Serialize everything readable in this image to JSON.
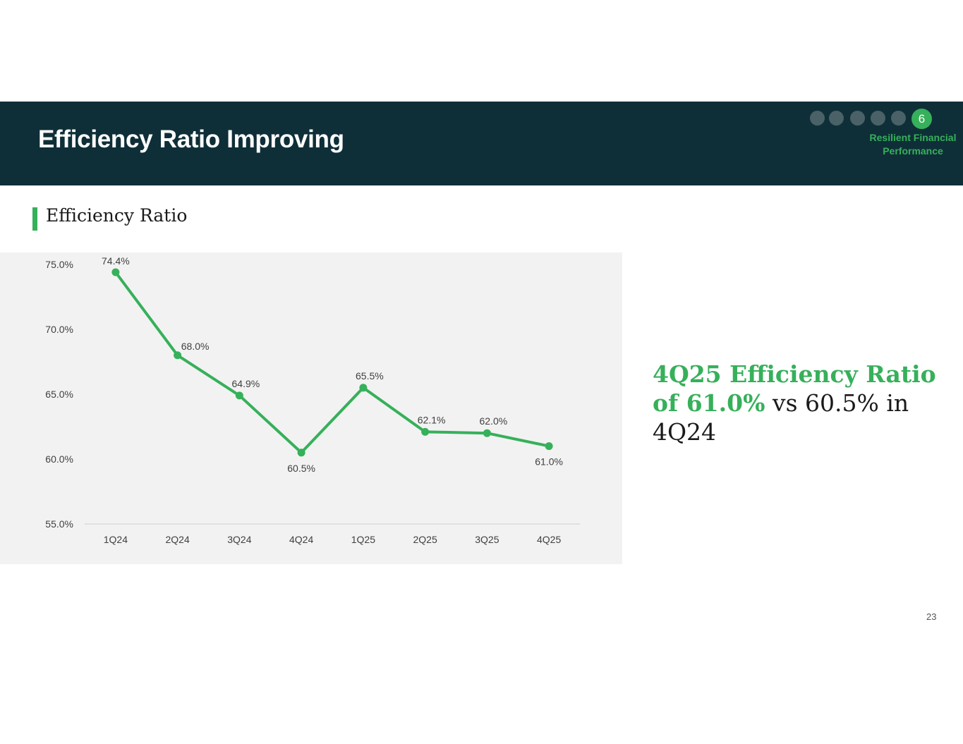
{
  "header": {
    "title": "Efficiency Ratio Improving",
    "progress": {
      "total_steps": 6,
      "current_step": "6",
      "section_label": "Resilient Financial Performance"
    }
  },
  "subheading": "Efficiency Ratio",
  "chart_data": {
    "type": "line",
    "title": "Efficiency Ratio",
    "categories": [
      "1Q24",
      "2Q24",
      "3Q24",
      "4Q24",
      "1Q25",
      "2Q25",
      "3Q25",
      "4Q25"
    ],
    "series": [
      {
        "name": "Efficiency Ratio",
        "values": [
          74.4,
          68.0,
          64.9,
          60.5,
          65.5,
          62.1,
          62.0,
          61.0
        ]
      }
    ],
    "data_labels": [
      "74.4%",
      "68.0%",
      "64.9%",
      "60.5%",
      "65.5%",
      "62.1%",
      "62.0%",
      "61.0%"
    ],
    "yticks": [
      "75.0%",
      "70.0%",
      "65.0%",
      "60.0%",
      "55.0%"
    ],
    "ytick_values": [
      75,
      70,
      65,
      60,
      55
    ],
    "ylim": [
      55,
      75
    ],
    "xlabel": "",
    "ylabel": "",
    "grid": false,
    "colors": {
      "line": "#36b05a",
      "label": "#404040",
      "axis": "#d9d9d9",
      "panel": "#f2f2f2"
    }
  },
  "callout": {
    "highlight": "4Q25 Efficiency Ratio of 61.0%",
    "rest": " vs 60.5% in 4Q24"
  },
  "page_number": "23",
  "colors": {
    "header_bg": "#0f2f38",
    "accent": "#36b05a",
    "inactive_dot": "#4a6168"
  }
}
